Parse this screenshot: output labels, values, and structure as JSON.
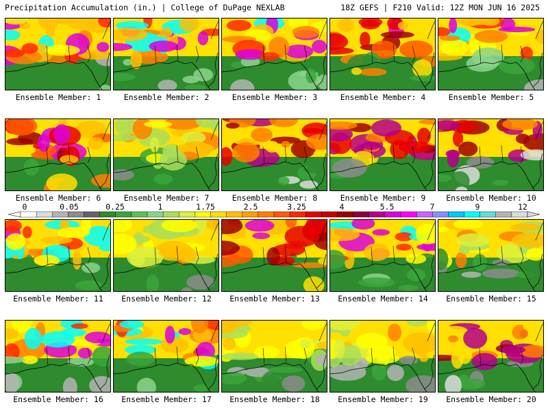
{
  "header": {
    "title": "Precipitation Accumulation (in.) | College of DuPage NEXLAB",
    "run_info": "18Z GEFS | F210 Valid: 12Z MON JUN 16 2025"
  },
  "members": [
    {
      "label": "Ensemble Member: 1",
      "scheme": "warm-nw"
    },
    {
      "label": "Ensemble Member: 2",
      "scheme": "warm-nw"
    },
    {
      "label": "Ensemble Member: 3",
      "scheme": "warm-nw"
    },
    {
      "label": "Ensemble Member: 4",
      "scheme": "hot-east"
    },
    {
      "label": "Ensemble Member: 5",
      "scheme": "warm-nw"
    },
    {
      "label": "Ensemble Member: 6",
      "scheme": "hot-east"
    },
    {
      "label": "Ensemble Member: 7",
      "scheme": "dry"
    },
    {
      "label": "Ensemble Member: 8",
      "scheme": "hot-north"
    },
    {
      "label": "Ensemble Member: 9",
      "scheme": "hot-north"
    },
    {
      "label": "Ensemble Member: 10",
      "scheme": "hot-north"
    },
    {
      "label": "Ensemble Member: 11",
      "scheme": "warm-nw"
    },
    {
      "label": "Ensemble Member: 12",
      "scheme": "dry"
    },
    {
      "label": "Ensemble Member: 13",
      "scheme": "hot-east"
    },
    {
      "label": "Ensemble Member: 14",
      "scheme": "warm-nw"
    },
    {
      "label": "Ensemble Member: 15",
      "scheme": "dry"
    },
    {
      "label": "Ensemble Member: 16",
      "scheme": "warm-nw"
    },
    {
      "label": "Ensemble Member: 17",
      "scheme": "warm-nw"
    },
    {
      "label": "Ensemble Member: 18",
      "scheme": "dry"
    },
    {
      "label": "Ensemble Member: 19",
      "scheme": "dry"
    },
    {
      "label": "Ensemble Member: 20",
      "scheme": "hot-north"
    }
  ],
  "colorbar": {
    "tick_labels": [
      "0",
      "0.05",
      "0.25",
      "1",
      "1.75",
      "2.5",
      "3.25",
      "4",
      "5.5",
      "7",
      "9",
      "12"
    ],
    "colors": [
      "#ffffff",
      "#dcdcdc",
      "#b4b4b4",
      "#8c8c8c",
      "#646464",
      "#2e8b2e",
      "#3aa53a",
      "#5cc05c",
      "#8bd48b",
      "#aade5a",
      "#dcf03c",
      "#ffff00",
      "#ffe000",
      "#ffc000",
      "#ffa000",
      "#ff8000",
      "#ff5a00",
      "#ff2800",
      "#e60000",
      "#c80000",
      "#a00000",
      "#8b0040",
      "#b4008b",
      "#dc00dc",
      "#ff00ff",
      "#c864ff",
      "#8c8cff",
      "#00c8ff",
      "#00ffff",
      "#64dcdc",
      "#b4b4b4",
      "#dcdcdc"
    ]
  }
}
